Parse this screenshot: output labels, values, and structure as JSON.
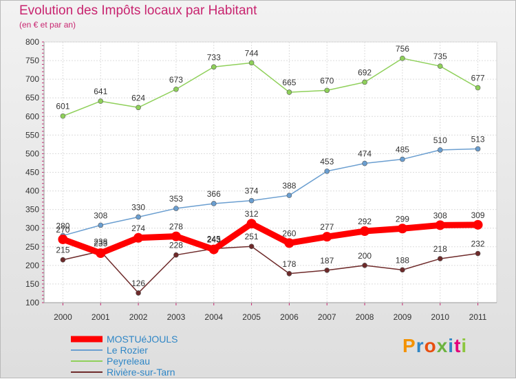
{
  "header": {
    "title": "Evolution des Impôts locaux par Habitant",
    "subtitle": "(en € et par an)"
  },
  "logo": {
    "text": "Proxiti",
    "colors": [
      "#f39200",
      "#2f86c6",
      "#e84e0f",
      "#6cb33f",
      "#2f86c6",
      "#e2007a",
      "#8cc63f"
    ]
  },
  "chart_data": {
    "type": "line",
    "title": "Evolution des Impôts locaux par Habitant",
    "subtitle": "(en € et par an)",
    "xlabel": "",
    "ylabel": "",
    "ylim": [
      100,
      800
    ],
    "y_ticks": [
      100,
      150,
      200,
      250,
      300,
      350,
      400,
      450,
      500,
      550,
      600,
      650,
      700,
      750,
      800
    ],
    "categories": [
      "2000",
      "2001",
      "2002",
      "2003",
      "2004",
      "2005",
      "2006",
      "2007",
      "2008",
      "2009",
      "2010",
      "2011"
    ],
    "grid": true,
    "legend_position": "bottom-left",
    "series": [
      {
        "name": "MOSTUéJOULS",
        "color": "#ff0000",
        "values": [
          270,
          233,
          274,
          278,
          243,
          312,
          260,
          277,
          292,
          299,
          308,
          309
        ]
      },
      {
        "name": "Le Rozier",
        "color": "#6a9ed0",
        "values": [
          280,
          308,
          330,
          353,
          366,
          374,
          388,
          453,
          474,
          485,
          510,
          513
        ]
      },
      {
        "name": "Peyreleau",
        "color": "#8fd05a",
        "values": [
          601,
          641,
          624,
          673,
          733,
          744,
          665,
          670,
          692,
          756,
          735,
          677
        ]
      },
      {
        "name": "Rivière-sur-Tarn",
        "color": "#6e2a2a",
        "values": [
          215,
          238,
          126,
          228,
          245,
          251,
          178,
          187,
          200,
          188,
          218,
          232
        ]
      }
    ]
  }
}
